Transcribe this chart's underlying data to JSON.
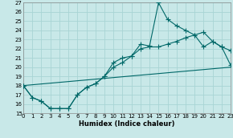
{
  "xlabel": "Humidex (Indice chaleur)",
  "bg_color": "#c8e8e8",
  "grid_color": "#a8d4d4",
  "line_color": "#006868",
  "xmin": 0,
  "xmax": 23,
  "ymin": 15,
  "ymax": 27,
  "xticks": [
    0,
    1,
    2,
    3,
    4,
    5,
    6,
    7,
    8,
    9,
    10,
    11,
    12,
    13,
    14,
    15,
    16,
    17,
    18,
    19,
    20,
    21,
    22,
    23
  ],
  "yticks": [
    15,
    16,
    17,
    18,
    19,
    20,
    21,
    22,
    23,
    24,
    25,
    26,
    27
  ],
  "curve1_x": [
    0,
    1,
    2,
    3,
    4,
    5,
    6,
    7,
    8,
    9,
    10,
    11,
    12,
    13,
    14,
    15,
    16,
    17,
    18,
    19,
    20,
    21,
    22,
    23
  ],
  "curve1_y": [
    18.0,
    16.7,
    16.3,
    15.5,
    15.5,
    15.5,
    17.0,
    17.8,
    18.2,
    19.0,
    20.0,
    20.5,
    21.2,
    22.0,
    22.2,
    22.2,
    22.5,
    22.8,
    23.2,
    23.5,
    23.8,
    22.8,
    22.2,
    21.8
  ],
  "curve2_x": [
    0,
    1,
    2,
    3,
    4,
    5,
    6,
    7,
    8,
    9,
    10,
    11,
    12,
    13,
    14,
    15,
    16,
    17,
    18,
    19,
    20,
    21,
    22,
    23
  ],
  "curve2_y": [
    18.0,
    16.7,
    16.3,
    15.5,
    15.5,
    15.5,
    17.0,
    17.8,
    18.2,
    19.0,
    20.5,
    21.0,
    21.2,
    22.5,
    22.3,
    27.0,
    25.2,
    24.5,
    24.0,
    23.5,
    22.2,
    22.8,
    22.2,
    20.2
  ],
  "line3_x": [
    0,
    23
  ],
  "line3_y": [
    18.0,
    20.0
  ]
}
